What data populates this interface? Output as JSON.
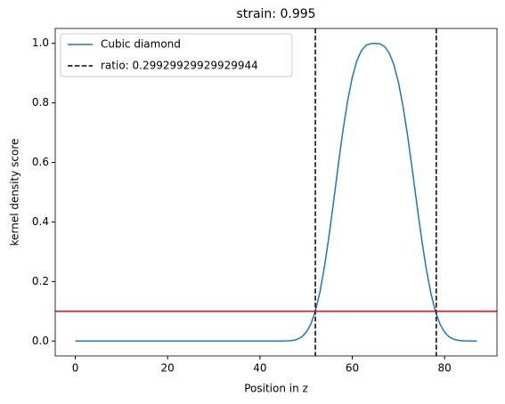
{
  "chart_data": {
    "type": "line",
    "title": "strain: 0.995",
    "xlabel": "Position in z",
    "ylabel": "kernel density score",
    "x": [
      0,
      10,
      20,
      30,
      40,
      44,
      46,
      47,
      48,
      49,
      50,
      51,
      52,
      53,
      54,
      55,
      56,
      57,
      58,
      59,
      60,
      61,
      62,
      63,
      64,
      65,
      66,
      67,
      68,
      69,
      70,
      71,
      72,
      73,
      74,
      75,
      76,
      77,
      78,
      79,
      80,
      81,
      82,
      83,
      84,
      85,
      86,
      87
    ],
    "series": [
      {
        "name": "Cubic diamond",
        "color": "#1f77b4",
        "values": [
          0,
          0,
          0,
          0,
          0,
          0,
          0.0007,
          0.002,
          0.0055,
          0.013,
          0.029,
          0.056,
          0.1,
          0.165,
          0.252,
          0.357,
          0.474,
          0.595,
          0.709,
          0.807,
          0.886,
          0.942,
          0.976,
          0.994,
          0.999,
          1.0,
          0.998,
          0.989,
          0.968,
          0.929,
          0.869,
          0.788,
          0.689,
          0.576,
          0.459,
          0.346,
          0.245,
          0.163,
          0.1,
          0.057,
          0.03,
          0.014,
          0.006,
          0.0024,
          0.0008,
          0.0003,
          0.0001,
          0
        ]
      }
    ],
    "vlines": {
      "name": "ratio: 0.29929929929929944",
      "color": "#000000",
      "values": [
        52.0,
        78.2
      ]
    },
    "hline": {
      "value": 0.1,
      "color": "#ff0000"
    },
    "xlim": [
      -4.35,
      91.35
    ],
    "ylim": [
      -0.05,
      1.05
    ],
    "xticks": [
      0,
      20,
      40,
      60,
      80
    ],
    "yticks": [
      {
        "value": 0,
        "label": "0.0"
      },
      {
        "value": 0.2,
        "label": "0.2"
      },
      {
        "value": 0.4,
        "label": "0.4"
      },
      {
        "value": 0.6,
        "label": "0.6"
      },
      {
        "value": 0.8,
        "label": "0.8"
      },
      {
        "value": 1.0,
        "label": "1.0"
      }
    ],
    "grid": false,
    "legend": "upper left"
  }
}
